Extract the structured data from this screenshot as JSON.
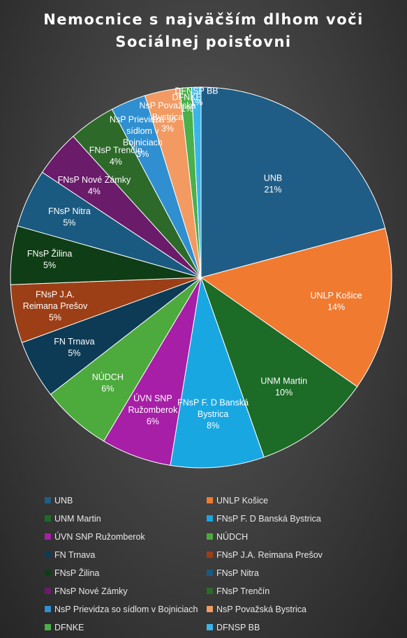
{
  "title": "Nemocnice s najväčším dlhom voči\nSociálnej poisťovni",
  "chart_data": {
    "type": "pie",
    "title": "Nemocnice s najväčším dlhom voči Sociálnej poisťovni",
    "legend_position": "bottom",
    "slices": [
      {
        "name": "UNB",
        "label": [
          "UNB",
          "21%"
        ],
        "value": 21,
        "color": "#205d86"
      },
      {
        "name": "UNLP Košice",
        "label": [
          "UNLP Košice",
          "14%"
        ],
        "value": 14,
        "color": "#f07a30"
      },
      {
        "name": "UNM Martin",
        "label": [
          "UNM Martin",
          "10%"
        ],
        "value": 10,
        "color": "#1c6b27"
      },
      {
        "name": "FNsP F. D Banská Bystrica",
        "label": [
          "FNsP F. D Banská",
          "Bystrica",
          "8%"
        ],
        "value": 8,
        "color": "#19a7e2"
      },
      {
        "name": "ÚVN SNP Ružomberok",
        "label": [
          "ÚVN SNP",
          "Ružomberok",
          "6%"
        ],
        "value": 6,
        "color": "#a61fa6"
      },
      {
        "name": "NÚDCH",
        "label": [
          "NÚDCH",
          "6%"
        ],
        "value": 6,
        "color": "#4daa3d"
      },
      {
        "name": "FN Trnava",
        "label": [
          "FN Trnava",
          "5%"
        ],
        "value": 5,
        "color": "#0d3b55"
      },
      {
        "name": "FNsP J.A. Reimana Prešov",
        "label": [
          "FNsP J.A.",
          "Reimana Prešov",
          "5%"
        ],
        "value": 5,
        "color": "#9c3f16"
      },
      {
        "name": "FNsP Žilina",
        "label": [
          "FNsP Žilina",
          "5%"
        ],
        "value": 5,
        "color": "#0f3d15"
      },
      {
        "name": "FNsP Nitra",
        "label": [
          "FNsP Nitra",
          "5%"
        ],
        "value": 5,
        "color": "#1a5a80"
      },
      {
        "name": "FNsP Nové Zámky",
        "label": [
          "FNsP Nové Zámky",
          "4%"
        ],
        "value": 4,
        "color": "#6a1b6a"
      },
      {
        "name": "FNsP Trenčín",
        "label": [
          "FNsP Trenčín",
          "4%"
        ],
        "value": 4,
        "color": "#2d6a2a"
      },
      {
        "name": "NsP Prievidza so sídlom v Bojniciach",
        "label": [
          "NsP Prievidza so",
          "sídlom v",
          "Bojniciach",
          "3%"
        ],
        "value": 3,
        "color": "#2f8fd0"
      },
      {
        "name": "NsP Považská Bystrica",
        "label": [
          "NsP Považská",
          "Bystrica",
          "3%"
        ],
        "value": 3,
        "color": "#f29a62"
      },
      {
        "name": "DFNKE",
        "label": [
          "DFNKE",
          "1%"
        ],
        "value": 1,
        "color": "#49b04a"
      },
      {
        "name": "DFNSP BB",
        "label": [
          "DFNSP BB",
          "1%"
        ],
        "value": 0.8,
        "color": "#39b5ea"
      }
    ]
  }
}
